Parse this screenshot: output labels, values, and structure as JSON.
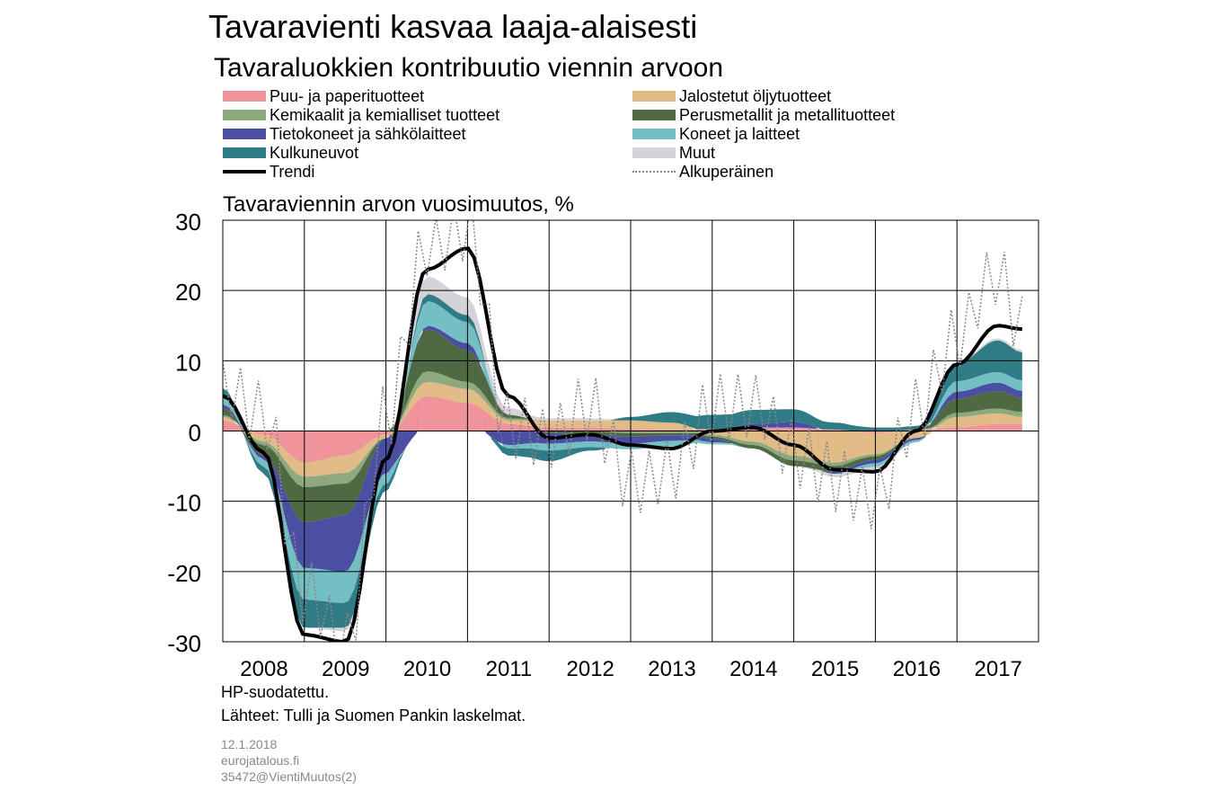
{
  "title": "Tavaravienti kasvaa laaja-alaisesti",
  "subtitle": "Tavaraluokkien kontribuutio viennin arvoon",
  "legend": {
    "items": [
      {
        "label": "Puu- ja paperituotteet",
        "color": "#f0939a",
        "kind": "area"
      },
      {
        "label": "Jalostetut öljytuotteet",
        "color": "#e2bc87",
        "kind": "area"
      },
      {
        "label": "Kemikaalit ja kemialliset tuotteet",
        "color": "#8fa97e",
        "kind": "area"
      },
      {
        "label": "Perusmetallit ja metallituotteet",
        "color": "#4f6a43",
        "kind": "area"
      },
      {
        "label": "Tietokoneet ja sähkölaitteet",
        "color": "#4a4fa2",
        "kind": "area"
      },
      {
        "label": "Koneet ja laitteet",
        "color": "#74bfc4",
        "kind": "area"
      },
      {
        "label": "Kulkuneuvot",
        "color": "#2f7b86",
        "kind": "area"
      },
      {
        "label": "Muut",
        "color": "#d6d2da",
        "kind": "area"
      },
      {
        "label": "Trendi",
        "color": "#000000",
        "kind": "line"
      },
      {
        "label": "Alkuperäinen",
        "color": "#888888",
        "kind": "dotted"
      }
    ]
  },
  "axis_title": "Tavaraviennin arvon vuosimuutos, %",
  "notes": {
    "filter": "HP-suodatettu.",
    "source": "Lähteet: Tulli ja Suomen Pankin laskelmat."
  },
  "meta": {
    "date": "12.1.2018",
    "site": "eurojatalous.fi",
    "code": "35472@VientiMuutos(2)"
  },
  "chart_data": {
    "type": "area",
    "title": "Tavaravienti kasvaa laaja-alaisesti",
    "subtitle": "Tavaraluokkien kontribuutio viennin arvoon",
    "ylabel": "Tavaraviennin arvon vuosimuutos, %",
    "xlabel": "",
    "ylim": [
      -30,
      30
    ],
    "yticks": [
      30,
      20,
      10,
      0,
      -10,
      -20,
      -30
    ],
    "xlim": [
      2008,
      2018
    ],
    "xticks": [
      2008,
      2009,
      2010,
      2011,
      2012,
      2013,
      2014,
      2015,
      2016,
      2017
    ],
    "grid": true,
    "stacked": true,
    "x": [
      2008.0,
      2008.5,
      2009.0,
      2009.5,
      2010.0,
      2010.5,
      2011.0,
      2011.5,
      2012.0,
      2012.5,
      2013.0,
      2013.5,
      2014.0,
      2014.5,
      2015.0,
      2015.5,
      2016.0,
      2016.5,
      2017.0,
      2017.5,
      2017.8
    ],
    "series": [
      {
        "name": "Puu- ja paperituotteet",
        "values": [
          1.5,
          -0.5,
          -4.5,
          -3.5,
          -0.5,
          5.0,
          4.0,
          1.0,
          0.5,
          0.5,
          0.3,
          0.2,
          0.3,
          0.5,
          0.5,
          0.2,
          -0.3,
          0.2,
          0.5,
          1.0,
          1.0
        ]
      },
      {
        "name": "Jalostetut öljytuotteet",
        "values": [
          0.5,
          -1.0,
          -2.0,
          -2.5,
          -0.5,
          2.0,
          2.0,
          0.5,
          1.0,
          1.0,
          1.2,
          1.0,
          -0.5,
          -1.5,
          -3.5,
          -4.5,
          -3.0,
          -1.0,
          1.5,
          1.5,
          1.0
        ]
      },
      {
        "name": "Kemikaalit ja kemialliset tuotteet",
        "values": [
          0.3,
          -0.5,
          -1.5,
          -1.5,
          0.0,
          1.5,
          1.0,
          0.3,
          0.0,
          0.0,
          -0.3,
          -0.3,
          -0.3,
          -0.5,
          -0.7,
          -0.5,
          -0.3,
          0.0,
          0.6,
          0.7,
          0.7
        ]
      },
      {
        "name": "Perusmetallit ja metallituotteet",
        "values": [
          1.0,
          -1.5,
          -5.0,
          -4.5,
          0.0,
          6.0,
          4.5,
          0.5,
          -0.3,
          -0.5,
          -0.5,
          -0.3,
          -0.3,
          -0.5,
          -0.8,
          -0.8,
          -0.5,
          0.0,
          2.0,
          2.5,
          2.0
        ]
      },
      {
        "name": "Tietokoneet ja sähkölaitteet",
        "values": [
          0.5,
          -0.5,
          -6.5,
          -8.0,
          -5.0,
          0.5,
          1.0,
          -2.0,
          -1.5,
          -1.0,
          -1.0,
          -0.8,
          -0.5,
          0.5,
          0.8,
          -0.3,
          -0.5,
          -0.3,
          1.0,
          1.2,
          1.0
        ]
      },
      {
        "name": "Koneet ja laitteet",
        "values": [
          1.0,
          -1.0,
          -4.5,
          -4.5,
          -1.5,
          3.5,
          3.0,
          -0.5,
          -1.0,
          -0.8,
          -0.8,
          -0.8,
          -0.3,
          0.0,
          0.0,
          0.0,
          -0.5,
          -0.3,
          1.5,
          1.5,
          1.5
        ]
      },
      {
        "name": "Kulkuneuvot",
        "values": [
          1.3,
          -1.0,
          -4.0,
          -3.5,
          -1.0,
          1.0,
          1.0,
          -1.0,
          -1.5,
          -0.5,
          0.5,
          1.5,
          2.0,
          2.0,
          1.8,
          1.0,
          0.5,
          0.5,
          2.5,
          4.5,
          4.0
        ]
      },
      {
        "name": "Muut",
        "values": [
          0.0,
          0.0,
          0.0,
          -0.5,
          0.0,
          2.5,
          2.5,
          1.0,
          0.3,
          0.3,
          0.0,
          0.0,
          0.0,
          0.0,
          0.0,
          -0.5,
          -0.5,
          0.0,
          0.2,
          0.3,
          0.3
        ]
      },
      {
        "name": "Trendi",
        "kind": "line",
        "values": [
          5.0,
          -3.0,
          -29.0,
          -30.0,
          -4.0,
          23.0,
          26.0,
          5.0,
          -1.0,
          -0.5,
          -2.0,
          -2.5,
          0.0,
          0.5,
          -2.0,
          -5.5,
          -5.8,
          0.0,
          9.5,
          15.0,
          14.5
        ]
      },
      {
        "name": "Alkuperäinen",
        "kind": "dotted",
        "values": [
          8.0,
          3.0,
          -24.0,
          -32.0,
          2.0,
          28.0,
          30.0,
          0.0,
          -3.0,
          3.0,
          -6.0,
          -4.0,
          3.0,
          2.0,
          -4.0,
          -6.0,
          -8.0,
          3.0,
          12.0,
          21.0,
          14.0
        ]
      }
    ]
  }
}
